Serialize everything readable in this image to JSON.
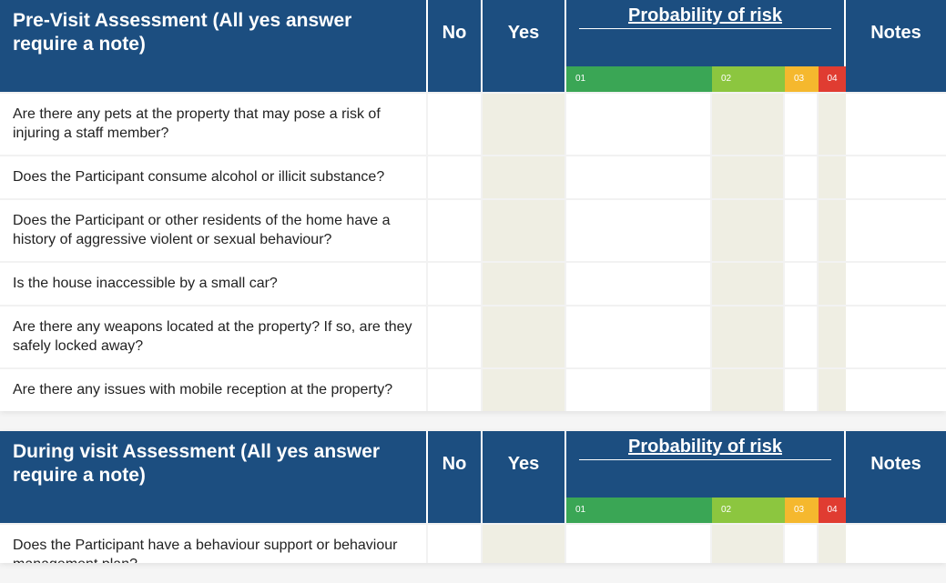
{
  "colors": {
    "header_bg": "#1c4e80",
    "header_text": "#ffffff",
    "row_border": "#f2f2f2",
    "shade_bg": "#efeee3",
    "risk1": "#3aa655",
    "risk2": "#8cc63f",
    "risk3": "#f5b82e",
    "risk4": "#e03c31"
  },
  "columns": {
    "no": "No",
    "yes": "Yes",
    "risk": "Probability of risk",
    "notes": "Notes"
  },
  "risk_labels": {
    "r1": "01",
    "r2": "02",
    "r3": "03",
    "r4": "04"
  },
  "tables": [
    {
      "title": "Pre-Visit Assessment (All yes answer require a note)",
      "questions": [
        "Are there any pets at the property that may pose a risk of injuring a staff member?",
        "Does the Participant consume alcohol or illicit substance?",
        "Does the Participant or other residents of the home have a history of aggressive violent or sexual behaviour?",
        "Is the house inaccessible by a small car?",
        "Are there any weapons located at the property? If so, are they safely locked away?",
        "Are there any issues with mobile reception at the property?"
      ]
    },
    {
      "title": "During visit Assessment (All yes answer require a note)",
      "questions": [
        "Does the Participant have a behaviour support or behaviour management plan?"
      ]
    }
  ]
}
